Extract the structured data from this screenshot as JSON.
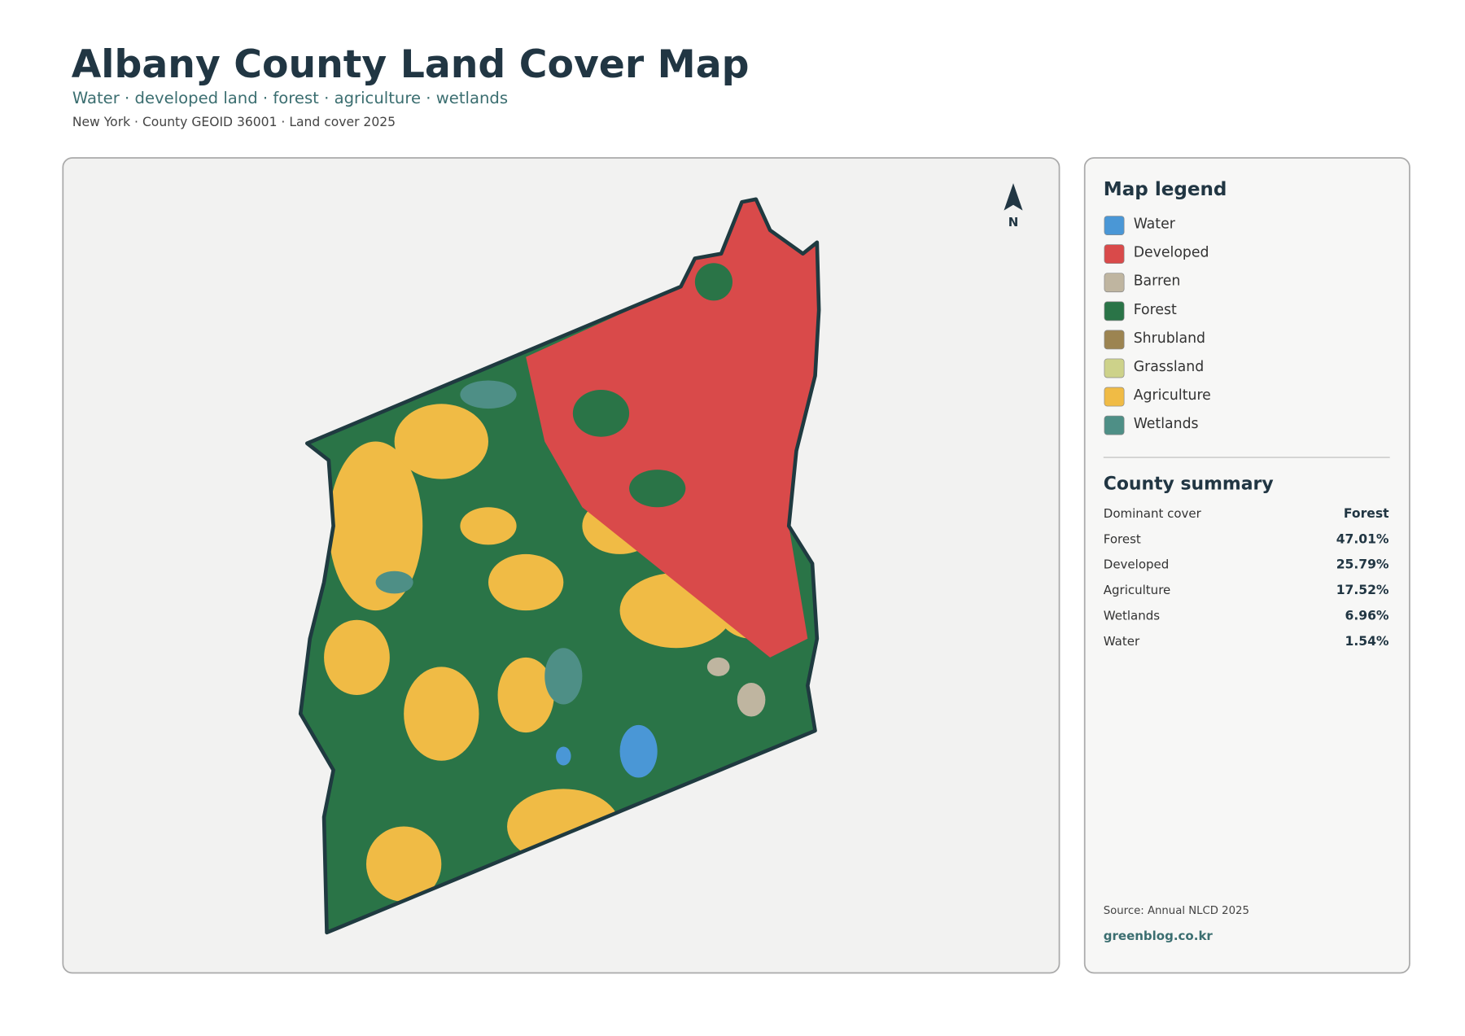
{
  "header": {
    "title": "Albany County Land Cover Map",
    "subtitle": "Water · developed land · forest · agriculture · wetlands",
    "meta": "New York · County GEOID 36001 · Land cover 2025"
  },
  "map": {
    "north": "N"
  },
  "legend": {
    "title": "Map legend",
    "items": [
      {
        "name": "Water",
        "color": "#4a97d6"
      },
      {
        "name": "Developed",
        "color": "#d94a4a"
      },
      {
        "name": "Barren",
        "color": "#bfb5a0"
      },
      {
        "name": "Forest",
        "color": "#2a7447"
      },
      {
        "name": "Shrubland",
        "color": "#9c8451"
      },
      {
        "name": "Grassland",
        "color": "#cdd28a"
      },
      {
        "name": "Agriculture",
        "color": "#f0bb45"
      },
      {
        "name": "Wetlands",
        "color": "#4e8f86"
      }
    ]
  },
  "summary": {
    "title": "County summary",
    "rows": [
      [
        "Dominant cover",
        "Forest"
      ],
      [
        "Forest",
        "47.01%"
      ],
      [
        "Developed",
        "25.79%"
      ],
      [
        "Agriculture",
        "17.52%"
      ],
      [
        "Wetlands",
        "6.96%"
      ],
      [
        "Water",
        "1.54%"
      ]
    ]
  },
  "footer": {
    "source": "Source: Annual NLCD 2025",
    "site": "greenblog.co.kr"
  }
}
